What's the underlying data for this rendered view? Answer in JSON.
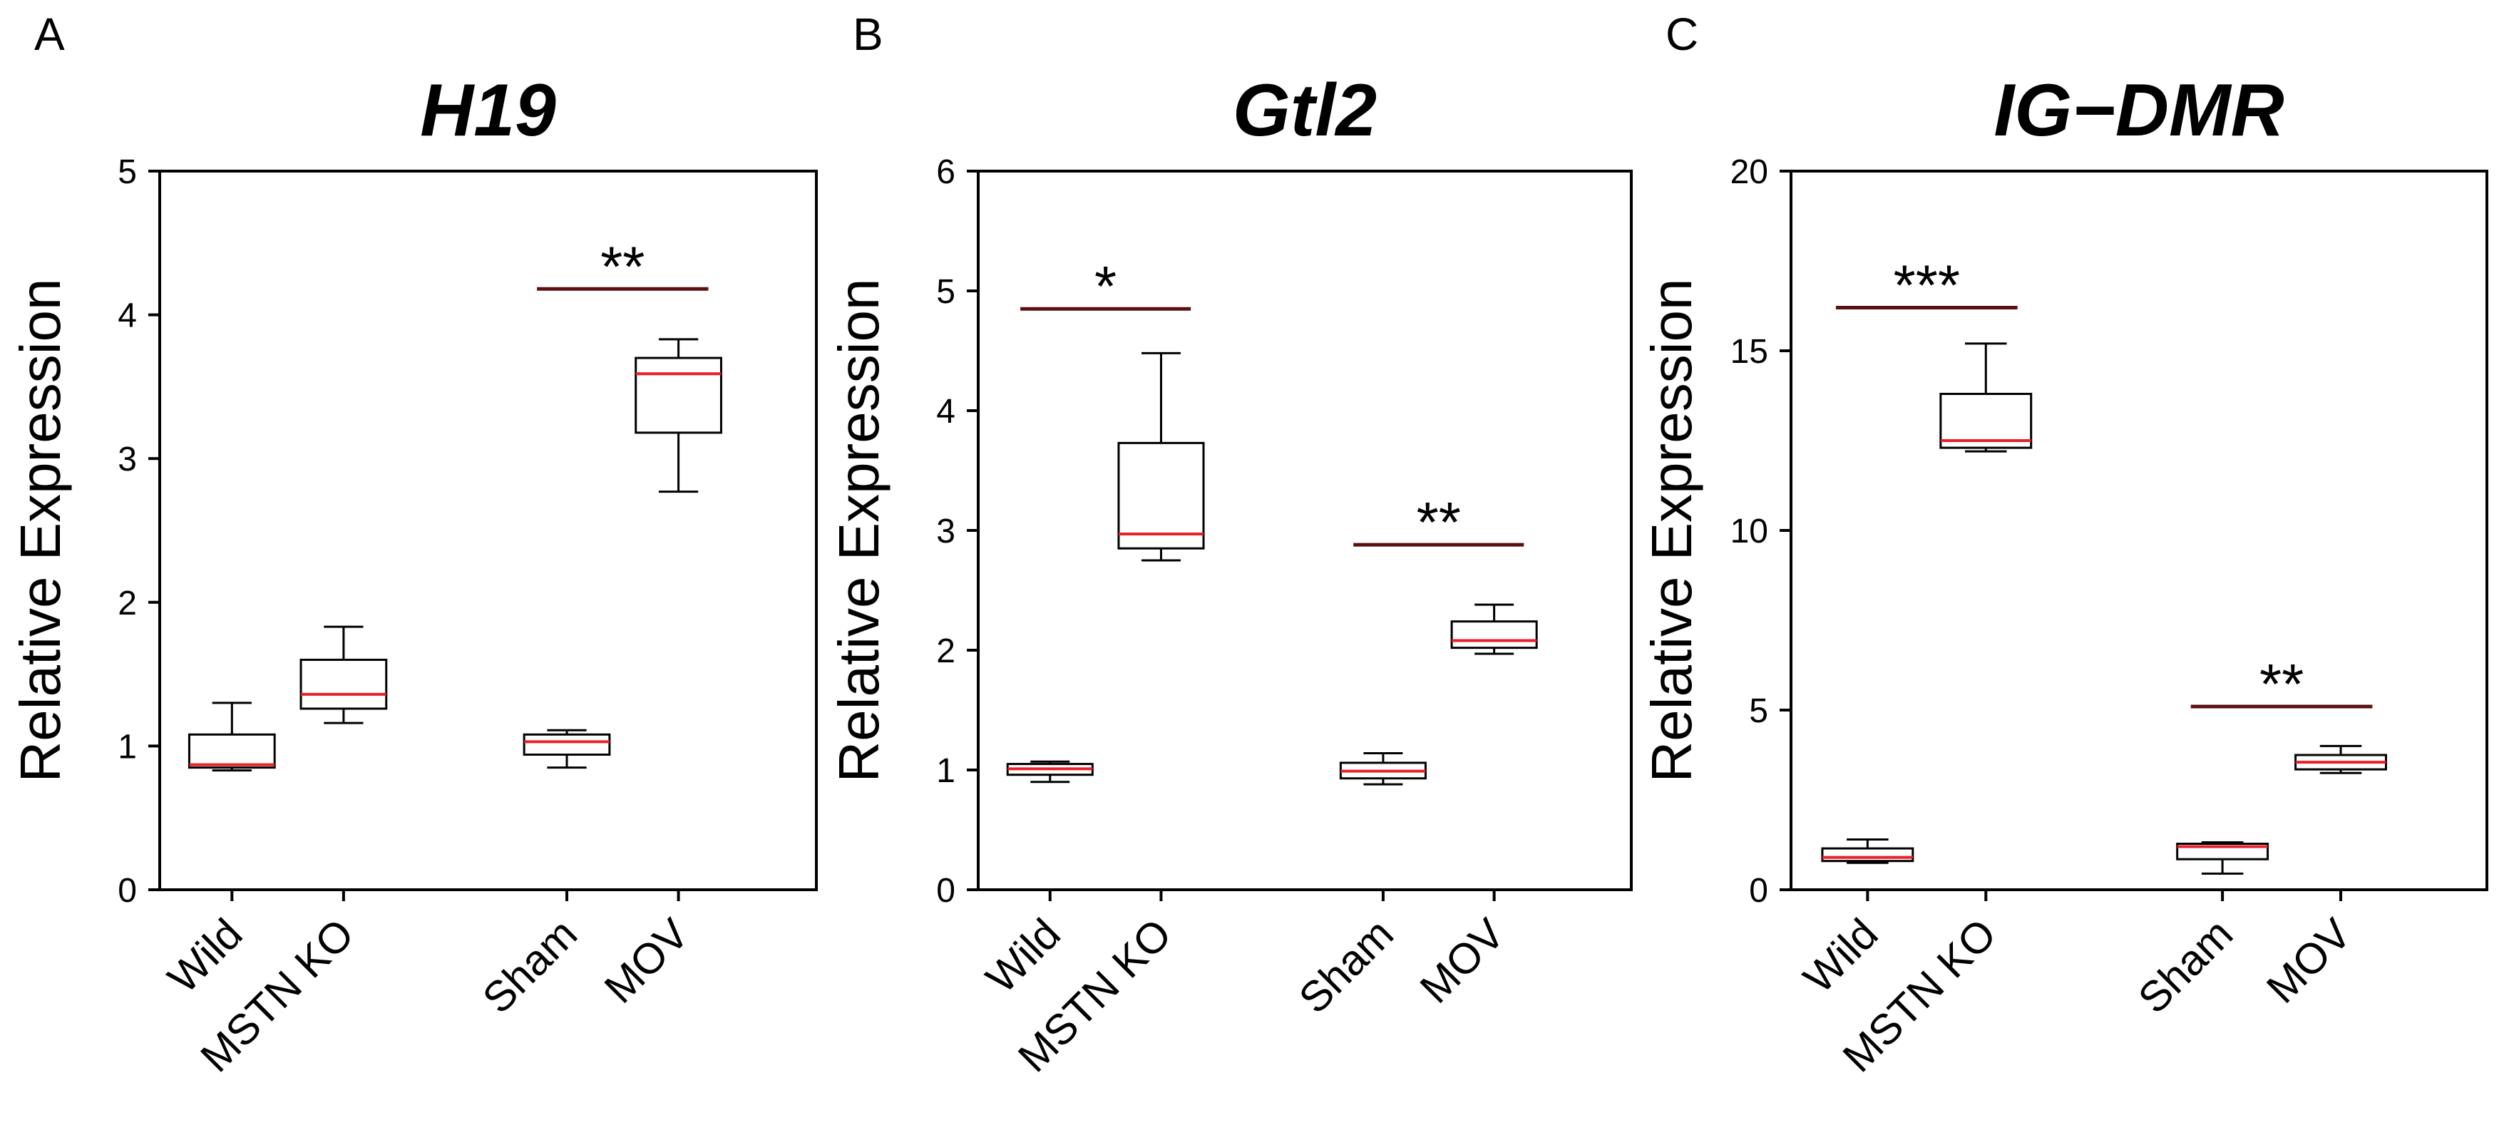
{
  "chart_data": [
    {
      "type": "box",
      "panel_label": "A",
      "title": "H19",
      "xlabel": "",
      "ylabel": "Relative Expression",
      "ylim": [
        0,
        5
      ],
      "yticks": [
        0,
        1,
        2,
        3,
        4,
        5
      ],
      "categories": [
        "Wild",
        "MSTN KO",
        "Sham",
        "MOV"
      ],
      "boxes": [
        {
          "min": 0.83,
          "q1": 0.85,
          "median": 0.87,
          "q3": 1.08,
          "max": 1.3
        },
        {
          "min": 1.16,
          "q1": 1.26,
          "median": 1.36,
          "q3": 1.6,
          "max": 1.83
        },
        {
          "min": 0.85,
          "q1": 0.94,
          "median": 1.03,
          "q3": 1.08,
          "max": 1.11
        },
        {
          "min": 2.77,
          "q1": 3.18,
          "median": 3.59,
          "q3": 3.7,
          "max": 3.83
        }
      ],
      "annotations": [
        {
          "text": "**",
          "from": 3,
          "to": 4,
          "y": 4.18
        }
      ]
    },
    {
      "type": "box",
      "panel_label": "B",
      "title": "Gtl2",
      "xlabel": "",
      "ylabel": "Relative Expression",
      "ylim": [
        0,
        6
      ],
      "yticks": [
        0,
        1,
        2,
        3,
        4,
        5,
        6
      ],
      "categories": [
        "Wild",
        "MSTN KO",
        "Sham",
        "MOV"
      ],
      "boxes": [
        {
          "min": 0.9,
          "q1": 0.96,
          "median": 1.01,
          "q3": 1.05,
          "max": 1.07
        },
        {
          "min": 2.75,
          "q1": 2.85,
          "median": 2.97,
          "q3": 3.73,
          "max": 4.48
        },
        {
          "min": 0.88,
          "q1": 0.93,
          "median": 0.99,
          "q3": 1.06,
          "max": 1.14
        },
        {
          "min": 1.97,
          "q1": 2.02,
          "median": 2.08,
          "q3": 2.24,
          "max": 2.38
        }
      ],
      "annotations": [
        {
          "text": "*",
          "from": 1,
          "to": 2,
          "y": 4.85
        },
        {
          "text": "**",
          "from": 3,
          "to": 4,
          "y": 2.88
        }
      ]
    },
    {
      "type": "box",
      "panel_label": "C",
      "title": "IG−DMR",
      "xlabel": "",
      "ylabel": "Relative Expression",
      "ylim": [
        0,
        20
      ],
      "yticks": [
        0,
        5,
        10,
        15,
        20
      ],
      "categories": [
        "Wild",
        "MSTN KO",
        "Sham",
        "MOV"
      ],
      "boxes": [
        {
          "min": 0.75,
          "q1": 0.8,
          "median": 0.9,
          "q3": 1.15,
          "max": 1.4
        },
        {
          "min": 12.2,
          "q1": 12.3,
          "median": 12.5,
          "q3": 13.8,
          "max": 15.2
        },
        {
          "min": 0.45,
          "q1": 0.85,
          "median": 1.2,
          "q3": 1.28,
          "max": 1.32
        },
        {
          "min": 3.25,
          "q1": 3.35,
          "median": 3.55,
          "q3": 3.75,
          "max": 4.0
        }
      ],
      "annotations": [
        {
          "text": "***",
          "from": 1,
          "to": 2,
          "y": 16.2
        },
        {
          "text": "**",
          "from": 3,
          "to": 4,
          "y": 5.1
        }
      ]
    }
  ],
  "colors": {
    "median": "#e8202a",
    "significance_line": "#5a1010",
    "box_stroke": "#000000",
    "background": "#ffffff"
  }
}
